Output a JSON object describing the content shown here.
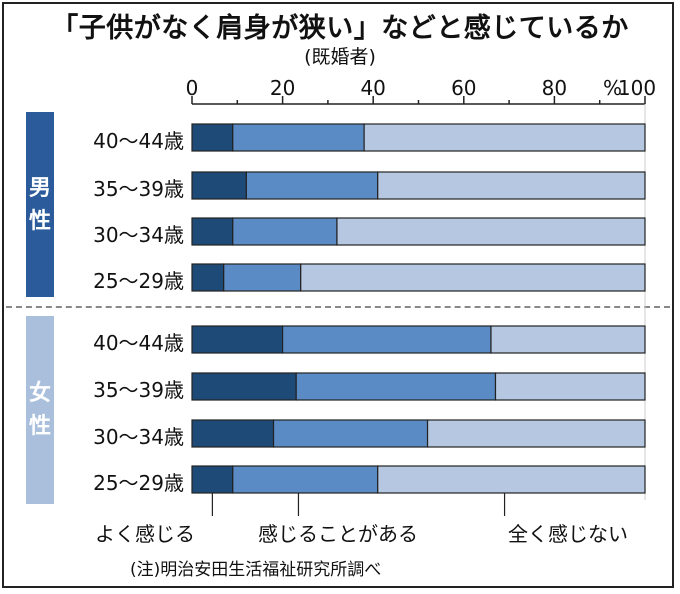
{
  "chart_data": {
    "type": "bar",
    "stacked": true,
    "orientation": "horizontal",
    "title": "「子供がなく肩身が狭い」などと感じているか",
    "subtitle": "(既婚者)",
    "x_ticks": [
      "0",
      "20",
      "40",
      "60",
      "80",
      "100"
    ],
    "x_unit": "%",
    "xlim": [
      0,
      100
    ],
    "groups": [
      {
        "label": "男性",
        "label_chars": [
          "男",
          "性"
        ],
        "color": "#2b5b9b"
      },
      {
        "label": "女性",
        "label_chars": [
          "女",
          "性"
        ],
        "color": "#a9bfdc"
      }
    ],
    "categories": [
      "40～44歳",
      "35～39歳",
      "30～34歳",
      "25～29歳",
      "40～44歳",
      "35～39歳",
      "30～34歳",
      "25～29歳"
    ],
    "category_groups": [
      0,
      0,
      0,
      0,
      1,
      1,
      1,
      1
    ],
    "series": [
      {
        "name": "よく感じる",
        "color": "#1e4a78",
        "values": [
          9,
          12,
          9,
          7,
          20,
          23,
          18,
          9
        ]
      },
      {
        "name": "感じることがある",
        "color": "#5b8bc4",
        "values": [
          29,
          29,
          23,
          17,
          46,
          44,
          34,
          32
        ]
      },
      {
        "name": "全く感じない",
        "color": "#b6c8e1",
        "values": [
          62,
          59,
          68,
          76,
          34,
          33,
          48,
          59
        ]
      }
    ],
    "legend": [
      "よく感じる",
      "感じることがある",
      "全く感じない"
    ],
    "note": "(注)明治安田生活福祉研究所調べ"
  }
}
